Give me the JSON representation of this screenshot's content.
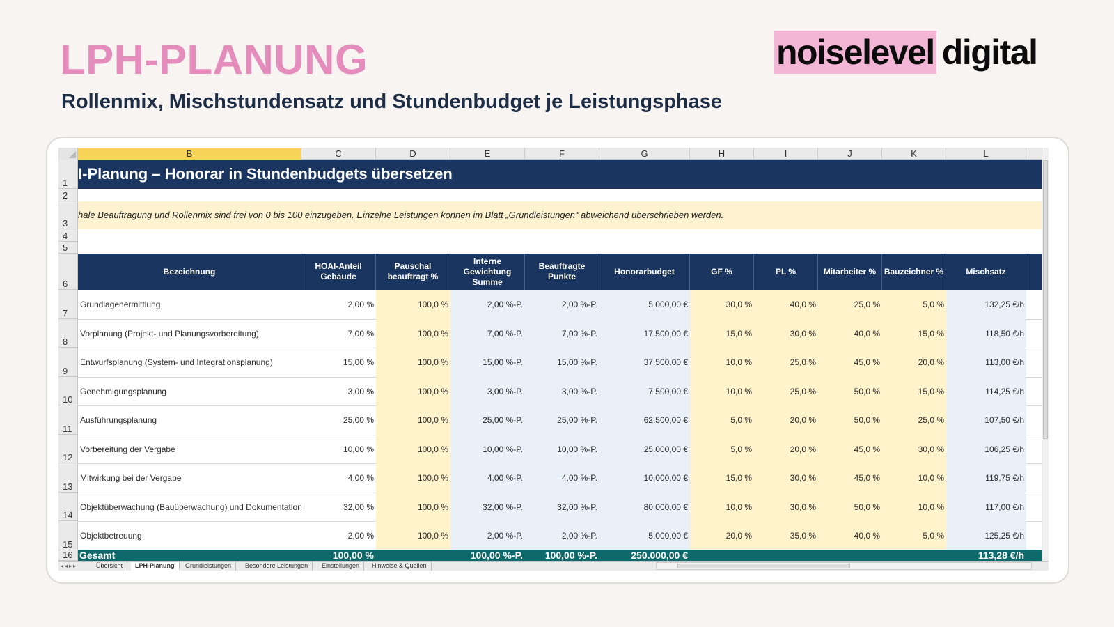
{
  "header": {
    "title": "LPH-PLANUNG",
    "subtitle": "Rollenmix, Mischstundensatz und Stundenbudget je Leistungsphase",
    "logo_highlight": "noiselevel",
    "logo_rest": "digital"
  },
  "sheet": {
    "columns": [
      "B",
      "C",
      "D",
      "E",
      "F",
      "G",
      "H",
      "I",
      "J",
      "K",
      "L"
    ],
    "selected_column": "B",
    "rows": [
      "1",
      "2",
      "3",
      "4",
      "5",
      "6",
      "7",
      "8",
      "9",
      "10",
      "11",
      "12",
      "13",
      "14",
      "15",
      "16"
    ],
    "banner": "I-Planung – Honorar in Stundenbudgets übersetzen",
    "note": "hale Beauftragung und Rollenmix sind frei von 0 bis 100 einzugeben. Einzelne Leistungen können im Blatt „Grundleistungen“ abweichend überschrieben werden.",
    "table_headers": {
      "bezeichnung": "Bezeichnung",
      "hoai_1": "HOAI-Anteil",
      "hoai_2": "Gebäude",
      "pauschal_1": "Pauschal",
      "pauschal_2": "beauftragt %",
      "intern_1": "Interne",
      "intern_2": "Gewichtung",
      "intern_3": "Summe",
      "beauf_1": "Beauftragte",
      "beauf_2": "Punkte",
      "honorar": "Honorarbudget",
      "gf": "GF %",
      "pl": "PL %",
      "mitarbeiter": "Mitarbeiter %",
      "bauzeichner": "Bauzeichner %",
      "mischsatz": "Mischsatz"
    },
    "data_rows": [
      {
        "name": "Grundlagenermittlung",
        "hoai": "2,00 %",
        "pauschal": "100,0 %",
        "intern": "2,00 %-P.",
        "beauftragt": "2,00 %-P.",
        "honorar": "5.000,00 €",
        "gf": "30,0 %",
        "pl": "40,0 %",
        "ma": "25,0 %",
        "bz": "5,0 %",
        "misch": "132,25 €/h"
      },
      {
        "name": "Vorplanung (Projekt- und Planungsvorbereitung)",
        "hoai": "7,00 %",
        "pauschal": "100,0 %",
        "intern": "7,00 %-P.",
        "beauftragt": "7,00 %-P.",
        "honorar": "17.500,00 €",
        "gf": "15,0 %",
        "pl": "30,0 %",
        "ma": "40,0 %",
        "bz": "15,0 %",
        "misch": "118,50 €/h"
      },
      {
        "name": "Entwurfsplanung (System- und Integrationsplanung)",
        "hoai": "15,00 %",
        "pauschal": "100,0 %",
        "intern": "15,00 %-P.",
        "beauftragt": "15,00 %-P.",
        "honorar": "37.500,00 €",
        "gf": "10,0 %",
        "pl": "25,0 %",
        "ma": "45,0 %",
        "bz": "20,0 %",
        "misch": "113,00 €/h"
      },
      {
        "name": "Genehmigungsplanung",
        "hoai": "3,00 %",
        "pauschal": "100,0 %",
        "intern": "3,00 %-P.",
        "beauftragt": "3,00 %-P.",
        "honorar": "7.500,00 €",
        "gf": "10,0 %",
        "pl": "25,0 %",
        "ma": "50,0 %",
        "bz": "15,0 %",
        "misch": "114,25 €/h"
      },
      {
        "name": "Ausführungsplanung",
        "hoai": "25,00 %",
        "pauschal": "100,0 %",
        "intern": "25,00 %-P.",
        "beauftragt": "25,00 %-P.",
        "honorar": "62.500,00 €",
        "gf": "5,0 %",
        "pl": "20,0 %",
        "ma": "50,0 %",
        "bz": "25,0 %",
        "misch": "107,50 €/h"
      },
      {
        "name": "Vorbereitung der Vergabe",
        "hoai": "10,00 %",
        "pauschal": "100,0 %",
        "intern": "10,00 %-P.",
        "beauftragt": "10,00 %-P.",
        "honorar": "25.000,00 €",
        "gf": "5,0 %",
        "pl": "20,0 %",
        "ma": "45,0 %",
        "bz": "30,0 %",
        "misch": "106,25 €/h"
      },
      {
        "name": "Mitwirkung bei der Vergabe",
        "hoai": "4,00 %",
        "pauschal": "100,0 %",
        "intern": "4,00 %-P.",
        "beauftragt": "4,00 %-P.",
        "honorar": "10.000,00 €",
        "gf": "15,0 %",
        "pl": "30,0 %",
        "ma": "45,0 %",
        "bz": "10,0 %",
        "misch": "119,75 €/h"
      },
      {
        "name": "Objektüberwachung (Bauüberwachung) und Dokumentation",
        "hoai": "32,00 %",
        "pauschal": "100,0 %",
        "intern": "32,00 %-P.",
        "beauftragt": "32,00 %-P.",
        "honorar": "80.000,00 €",
        "gf": "10,0 %",
        "pl": "30,0 %",
        "ma": "50,0 %",
        "bz": "10,0 %",
        "misch": "117,00 €/h"
      },
      {
        "name": "Objektbetreuung",
        "hoai": "2,00 %",
        "pauschal": "100,0 %",
        "intern": "2,00 %-P.",
        "beauftragt": "2,00 %-P.",
        "honorar": "5.000,00 €",
        "gf": "20,0 %",
        "pl": "35,0 %",
        "ma": "40,0 %",
        "bz": "5,0 %",
        "misch": "125,25 €/h"
      }
    ],
    "total": {
      "label": "Gesamt",
      "hoai": "100,00 %",
      "intern": "100,00 %-P.",
      "beauftragt": "100,00 %-P.",
      "honorar": "250.000,00 €",
      "misch": "113,28 €/h"
    },
    "tabs": [
      "Übersicht",
      "LPH-Planung",
      "Grundleistungen",
      "Besondere Leistungen",
      "Einstellungen",
      "Hinweise & Quellen"
    ],
    "active_tab": "LPH-Planung"
  }
}
